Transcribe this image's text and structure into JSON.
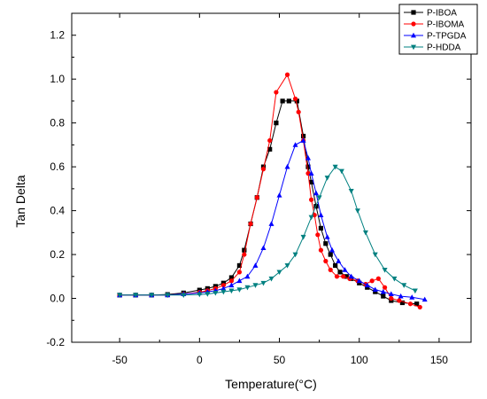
{
  "chart_data": {
    "type": "line",
    "title": "",
    "xlabel": "Temperature(°C)",
    "ylabel": "Tan Delta",
    "xlim": [
      -80,
      170
    ],
    "ylim": [
      -0.2,
      1.3
    ],
    "x_ticks": [
      -50,
      0,
      50,
      100,
      150
    ],
    "x_tick_labels": [
      "-50",
      "0",
      "50",
      "100",
      "150"
    ],
    "y_ticks": [
      -0.2,
      0.0,
      0.2,
      0.4,
      0.6,
      0.8,
      1.0,
      1.2
    ],
    "y_tick_labels": [
      "-0.2",
      "0.0",
      "0.2",
      "0.4",
      "0.6",
      "0.8",
      "1.0",
      "1.2"
    ],
    "grid": false,
    "legend_position": "top-right",
    "series": [
      {
        "name": "P-IBOA",
        "color": "#000000",
        "marker": "square",
        "points": [
          [
            -50,
            0.015
          ],
          [
            -40,
            0.015
          ],
          [
            -30,
            0.015
          ],
          [
            -20,
            0.018
          ],
          [
            -10,
            0.025
          ],
          [
            0,
            0.038
          ],
          [
            5,
            0.045
          ],
          [
            10,
            0.055
          ],
          [
            15,
            0.07
          ],
          [
            20,
            0.095
          ],
          [
            25,
            0.15
          ],
          [
            28,
            0.22
          ],
          [
            32,
            0.34
          ],
          [
            36,
            0.46
          ],
          [
            40,
            0.6
          ],
          [
            44,
            0.68
          ],
          [
            48,
            0.8
          ],
          [
            52,
            0.9
          ],
          [
            56,
            0.9
          ],
          [
            61,
            0.9
          ],
          [
            65,
            0.74
          ],
          [
            68,
            0.6
          ],
          [
            70,
            0.53
          ],
          [
            73,
            0.42
          ],
          [
            76,
            0.32
          ],
          [
            79,
            0.25
          ],
          [
            82,
            0.2
          ],
          [
            85,
            0.15
          ],
          [
            88,
            0.12
          ],
          [
            92,
            0.1
          ],
          [
            95,
            0.09
          ],
          [
            100,
            0.07
          ],
          [
            105,
            0.05
          ],
          [
            110,
            0.03
          ],
          [
            115,
            0.01
          ],
          [
            120,
            -0.01
          ],
          [
            127,
            -0.02
          ],
          [
            136,
            -0.025
          ]
        ]
      },
      {
        "name": "P-IBOMA",
        "color": "#ff0000",
        "marker": "circle",
        "points": [
          [
            -50,
            0.015
          ],
          [
            -40,
            0.015
          ],
          [
            -30,
            0.015
          ],
          [
            -20,
            0.015
          ],
          [
            -10,
            0.02
          ],
          [
            0,
            0.028
          ],
          [
            5,
            0.035
          ],
          [
            10,
            0.045
          ],
          [
            15,
            0.06
          ],
          [
            20,
            0.08
          ],
          [
            25,
            0.12
          ],
          [
            28,
            0.2
          ],
          [
            32,
            0.34
          ],
          [
            36,
            0.46
          ],
          [
            40,
            0.59
          ],
          [
            44,
            0.72
          ],
          [
            48,
            0.94
          ],
          [
            55,
            1.02
          ],
          [
            60,
            0.91
          ],
          [
            62,
            0.85
          ],
          [
            65,
            0.72
          ],
          [
            68,
            0.57
          ],
          [
            70,
            0.45
          ],
          [
            72,
            0.38
          ],
          [
            74,
            0.29
          ],
          [
            76,
            0.22
          ],
          [
            79,
            0.17
          ],
          [
            82,
            0.13
          ],
          [
            86,
            0.1
          ],
          [
            90,
            0.1
          ],
          [
            94,
            0.09
          ],
          [
            99,
            0.08
          ],
          [
            104,
            0.065
          ],
          [
            108,
            0.08
          ],
          [
            112,
            0.09
          ],
          [
            116,
            0.05
          ],
          [
            120,
            0.0
          ],
          [
            125,
            -0.01
          ],
          [
            132,
            -0.025
          ],
          [
            138,
            -0.04
          ]
        ]
      },
      {
        "name": "P-TPGDA",
        "color": "#0000ff",
        "marker": "triangle-up",
        "points": [
          [
            -50,
            0.015
          ],
          [
            -40,
            0.015
          ],
          [
            -30,
            0.015
          ],
          [
            -20,
            0.015
          ],
          [
            -10,
            0.02
          ],
          [
            0,
            0.025
          ],
          [
            5,
            0.03
          ],
          [
            10,
            0.035
          ],
          [
            15,
            0.045
          ],
          [
            20,
            0.06
          ],
          [
            25,
            0.08
          ],
          [
            30,
            0.1
          ],
          [
            35,
            0.15
          ],
          [
            40,
            0.23
          ],
          [
            45,
            0.34
          ],
          [
            50,
            0.47
          ],
          [
            55,
            0.6
          ],
          [
            60,
            0.7
          ],
          [
            65,
            0.72
          ],
          [
            68,
            0.64
          ],
          [
            70,
            0.57
          ],
          [
            73,
            0.48
          ],
          [
            76,
            0.38
          ],
          [
            80,
            0.28
          ],
          [
            83,
            0.22
          ],
          [
            87,
            0.17
          ],
          [
            91,
            0.13
          ],
          [
            95,
            0.1
          ],
          [
            100,
            0.08
          ],
          [
            105,
            0.06
          ],
          [
            110,
            0.04
          ],
          [
            115,
            0.03
          ],
          [
            120,
            0.02
          ],
          [
            126,
            0.01
          ],
          [
            133,
            0.005
          ],
          [
            141,
            -0.005
          ]
        ]
      },
      {
        "name": "P-HDDA",
        "color": "#008080",
        "marker": "triangle-down",
        "points": [
          [
            -50,
            0.015
          ],
          [
            -40,
            0.015
          ],
          [
            -30,
            0.015
          ],
          [
            -20,
            0.015
          ],
          [
            -10,
            0.015
          ],
          [
            0,
            0.018
          ],
          [
            5,
            0.02
          ],
          [
            10,
            0.025
          ],
          [
            15,
            0.03
          ],
          [
            20,
            0.035
          ],
          [
            25,
            0.04
          ],
          [
            30,
            0.05
          ],
          [
            35,
            0.06
          ],
          [
            40,
            0.07
          ],
          [
            45,
            0.09
          ],
          [
            50,
            0.12
          ],
          [
            55,
            0.15
          ],
          [
            60,
            0.2
          ],
          [
            65,
            0.28
          ],
          [
            70,
            0.37
          ],
          [
            75,
            0.46
          ],
          [
            80,
            0.55
          ],
          [
            85,
            0.6
          ],
          [
            89,
            0.58
          ],
          [
            95,
            0.49
          ],
          [
            99,
            0.4
          ],
          [
            104,
            0.3
          ],
          [
            110,
            0.2
          ],
          [
            116,
            0.13
          ],
          [
            122,
            0.09
          ],
          [
            128,
            0.06
          ],
          [
            135,
            0.035
          ]
        ]
      }
    ]
  }
}
